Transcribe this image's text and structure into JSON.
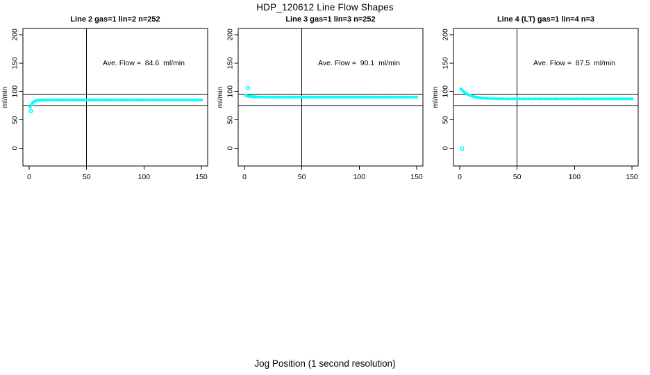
{
  "page": {
    "title": "HDP_120612  Line Flow Shapes",
    "xlabel": "Jog Position (1 second resolution)",
    "marker_color": "#00FFFF",
    "line_color": "#000000"
  },
  "chart_data": [
    {
      "type": "scatter",
      "title": "Line 2 gas=1 lin=2 n=252",
      "ylabel": "ml/min",
      "annotation": "Ave. Flow =  84.6  ml/min",
      "ave_flow": 84.6,
      "xlim": [
        0,
        150
      ],
      "ylim": [
        0,
        200
      ],
      "xticks": [
        0,
        50,
        100,
        150
      ],
      "yticks": [
        0,
        50,
        100,
        150,
        200
      ],
      "ref_lines_y": [
        95,
        75
      ],
      "ref_line_x": 50,
      "grid": false,
      "points": [
        [
          1,
          72.3
        ],
        [
          3,
          79.9
        ],
        [
          5,
          82.9
        ],
        [
          7,
          84.2
        ],
        [
          9,
          84.7
        ],
        [
          2,
          76.9
        ],
        [
          4,
          81.8
        ],
        [
          6,
          83.7
        ],
        [
          8,
          84.5
        ],
        [
          10,
          84.8
        ],
        [
          12,
          84.9
        ],
        [
          14,
          85.1
        ],
        [
          16,
          84.8
        ],
        [
          18,
          85.1
        ],
        [
          20,
          84.9
        ],
        [
          22,
          85.2
        ],
        [
          24,
          84.8
        ],
        [
          26,
          85.0
        ],
        [
          28,
          85.1
        ],
        [
          30,
          84.8
        ],
        [
          32,
          85.1
        ],
        [
          34,
          84.9
        ],
        [
          36,
          85.2
        ],
        [
          38,
          84.8
        ],
        [
          40,
          85.0
        ],
        [
          42,
          85.1
        ],
        [
          44,
          84.8
        ],
        [
          46,
          85.1
        ],
        [
          48,
          84.9
        ],
        [
          50,
          85.2
        ],
        [
          52,
          84.8
        ],
        [
          54,
          85.0
        ],
        [
          56,
          85.1
        ],
        [
          58,
          84.8
        ],
        [
          60,
          85.1
        ],
        [
          62,
          84.9
        ],
        [
          64,
          85.2
        ],
        [
          66,
          84.8
        ],
        [
          68,
          85.0
        ],
        [
          70,
          85.1
        ],
        [
          72,
          84.8
        ],
        [
          74,
          85.1
        ],
        [
          76,
          84.9
        ],
        [
          78,
          85.2
        ],
        [
          80,
          84.8
        ],
        [
          82,
          85.0
        ],
        [
          84,
          85.1
        ],
        [
          86,
          84.8
        ],
        [
          88,
          85.1
        ],
        [
          90,
          84.9
        ],
        [
          92,
          85.2
        ],
        [
          94,
          84.8
        ],
        [
          96,
          85.0
        ],
        [
          98,
          85.1
        ],
        [
          100,
          84.8
        ],
        [
          102,
          85.1
        ],
        [
          104,
          84.9
        ],
        [
          106,
          85.2
        ],
        [
          108,
          84.8
        ],
        [
          110,
          85.0
        ],
        [
          112,
          85.1
        ],
        [
          114,
          84.8
        ],
        [
          116,
          85.1
        ],
        [
          118,
          84.9
        ],
        [
          120,
          85.2
        ],
        [
          122,
          84.8
        ],
        [
          124,
          85.0
        ],
        [
          126,
          85.1
        ],
        [
          128,
          84.8
        ],
        [
          130,
          85.1
        ],
        [
          132,
          84.9
        ],
        [
          134,
          85.2
        ],
        [
          136,
          84.8
        ],
        [
          138,
          85.0
        ],
        [
          140,
          85.1
        ],
        [
          142,
          84.8
        ],
        [
          144,
          85.1
        ],
        [
          146,
          84.9
        ],
        [
          148,
          85.2
        ],
        [
          150,
          84.8
        ]
      ],
      "outliers": [
        [
          1.5,
          65.5
        ]
      ]
    },
    {
      "type": "scatter",
      "title": "Line 3 gas=1 lin=3 n=252",
      "ylabel": "ml/min",
      "annotation": "Ave. Flow =  90.1  ml/min",
      "ave_flow": 90.1,
      "xlim": [
        0,
        150
      ],
      "ylim": [
        0,
        200
      ],
      "xticks": [
        0,
        50,
        100,
        150
      ],
      "yticks": [
        0,
        50,
        100,
        150,
        200
      ],
      "ref_lines_y": [
        95,
        75
      ],
      "ref_line_x": 50,
      "grid": false,
      "points": [
        [
          1,
          92.9
        ],
        [
          3,
          91.9
        ],
        [
          5,
          91.3
        ],
        [
          7,
          90.9
        ],
        [
          9,
          90.6
        ],
        [
          2,
          92.3
        ],
        [
          4,
          91.6
        ],
        [
          6,
          91.1
        ],
        [
          8,
          90.7
        ],
        [
          10,
          90.5
        ],
        [
          12,
          90.3
        ],
        [
          14,
          90.2
        ],
        [
          16,
          90.1
        ],
        [
          18,
          90.1
        ],
        [
          20,
          89.9
        ],
        [
          22,
          90.1
        ],
        [
          24,
          90.0
        ],
        [
          26,
          90.2
        ],
        [
          28,
          89.9
        ],
        [
          30,
          90.1
        ],
        [
          32,
          90.0
        ],
        [
          34,
          90.1
        ],
        [
          36,
          89.9
        ],
        [
          38,
          90.1
        ],
        [
          40,
          90.0
        ],
        [
          42,
          90.2
        ],
        [
          44,
          89.9
        ],
        [
          46,
          90.1
        ],
        [
          48,
          90.0
        ],
        [
          50,
          90.1
        ],
        [
          52,
          89.9
        ],
        [
          54,
          90.1
        ],
        [
          56,
          90.0
        ],
        [
          58,
          90.2
        ],
        [
          60,
          89.9
        ],
        [
          62,
          90.1
        ],
        [
          64,
          90.0
        ],
        [
          66,
          90.1
        ],
        [
          68,
          89.9
        ],
        [
          70,
          90.1
        ],
        [
          72,
          90.0
        ],
        [
          74,
          90.2
        ],
        [
          76,
          89.9
        ],
        [
          78,
          90.1
        ],
        [
          80,
          90.0
        ],
        [
          82,
          90.1
        ],
        [
          84,
          89.9
        ],
        [
          86,
          90.1
        ],
        [
          88,
          90.0
        ],
        [
          90,
          90.2
        ],
        [
          92,
          89.9
        ],
        [
          94,
          90.1
        ],
        [
          96,
          90.0
        ],
        [
          98,
          90.1
        ],
        [
          100,
          89.9
        ],
        [
          102,
          90.1
        ],
        [
          104,
          90.0
        ],
        [
          106,
          90.2
        ],
        [
          108,
          89.9
        ],
        [
          110,
          90.1
        ],
        [
          112,
          90.0
        ],
        [
          114,
          90.1
        ],
        [
          116,
          89.9
        ],
        [
          118,
          90.1
        ],
        [
          120,
          90.0
        ],
        [
          122,
          90.2
        ],
        [
          124,
          89.9
        ],
        [
          126,
          90.1
        ],
        [
          128,
          90.0
        ],
        [
          130,
          90.1
        ],
        [
          132,
          89.9
        ],
        [
          134,
          90.1
        ],
        [
          136,
          90.0
        ],
        [
          138,
          90.2
        ],
        [
          140,
          89.9
        ],
        [
          142,
          90.1
        ],
        [
          144,
          90.0
        ],
        [
          146,
          90.1
        ],
        [
          148,
          89.9
        ],
        [
          150,
          90.1
        ]
      ],
      "outliers": [
        [
          3,
          106
        ]
      ]
    },
    {
      "type": "scatter",
      "title": "Line 4 (LT) gas=1 lin=4 n=3",
      "ylabel": "ml/min",
      "annotation": "Ave. Flow =  87.5  ml/min",
      "ave_flow": 87.5,
      "xlim": [
        0,
        150
      ],
      "ylim": [
        0,
        200
      ],
      "xticks": [
        0,
        50,
        100,
        150
      ],
      "yticks": [
        0,
        50,
        100,
        150,
        200
      ],
      "ref_lines_y": [
        95,
        75
      ],
      "ref_line_x": 50,
      "grid": false,
      "points": [
        [
          1,
          104.5
        ],
        [
          3,
          100.4
        ],
        [
          5,
          97.3
        ],
        [
          7,
          94.9
        ],
        [
          9,
          93.0
        ],
        [
          11,
          91.6
        ],
        [
          13,
          90.5
        ],
        [
          15,
          89.7
        ],
        [
          17,
          89.1
        ],
        [
          19,
          88.6
        ],
        [
          2,
          102.3
        ],
        [
          4,
          98.7
        ],
        [
          6,
          96.0
        ],
        [
          8,
          93.9
        ],
        [
          10,
          92.3
        ],
        [
          12,
          91.0
        ],
        [
          14,
          90.1
        ],
        [
          16,
          89.4
        ],
        [
          18,
          88.8
        ],
        [
          20,
          88.4
        ],
        [
          22,
          88.1
        ],
        [
          24,
          87.8
        ],
        [
          26,
          87.6
        ],
        [
          28,
          87.5
        ],
        [
          30,
          87.4
        ],
        [
          32,
          87.3
        ],
        [
          34,
          87.2
        ],
        [
          36,
          87.2
        ],
        [
          38,
          87.1
        ],
        [
          40,
          87.1
        ],
        [
          42,
          87.0
        ],
        [
          44,
          86.9
        ],
        [
          46,
          87.1
        ],
        [
          48,
          87.0
        ],
        [
          50,
          86.9
        ],
        [
          52,
          87.1
        ],
        [
          54,
          87.0
        ],
        [
          56,
          86.9
        ],
        [
          58,
          87.0
        ],
        [
          60,
          87.1
        ],
        [
          62,
          86.9
        ],
        [
          64,
          87.0
        ],
        [
          66,
          87.1
        ],
        [
          68,
          86.9
        ],
        [
          70,
          87.0
        ],
        [
          72,
          87.1
        ],
        [
          74,
          86.9
        ],
        [
          76,
          87.0
        ],
        [
          78,
          87.1
        ],
        [
          80,
          86.9
        ],
        [
          82,
          87.0
        ],
        [
          84,
          87.1
        ],
        [
          86,
          86.9
        ],
        [
          88,
          87.0
        ],
        [
          90,
          87.1
        ],
        [
          92,
          86.9
        ],
        [
          94,
          87.0
        ],
        [
          96,
          87.1
        ],
        [
          98,
          86.9
        ],
        [
          100,
          87.0
        ],
        [
          102,
          87.1
        ],
        [
          104,
          86.9
        ],
        [
          106,
          87.0
        ],
        [
          108,
          87.1
        ],
        [
          110,
          86.9
        ],
        [
          112,
          87.0
        ],
        [
          114,
          87.1
        ],
        [
          116,
          86.9
        ],
        [
          118,
          87.0
        ],
        [
          120,
          87.1
        ],
        [
          122,
          86.9
        ],
        [
          124,
          87.0
        ],
        [
          126,
          87.1
        ],
        [
          128,
          86.9
        ],
        [
          130,
          87.0
        ],
        [
          132,
          87.1
        ],
        [
          134,
          86.9
        ],
        [
          136,
          87.0
        ],
        [
          138,
          87.1
        ],
        [
          140,
          86.9
        ],
        [
          142,
          87.0
        ],
        [
          144,
          87.1
        ],
        [
          146,
          86.9
        ],
        [
          148,
          87.0
        ],
        [
          150,
          87.1
        ]
      ],
      "outliers": [
        [
          2,
          -0.5
        ]
      ]
    }
  ]
}
